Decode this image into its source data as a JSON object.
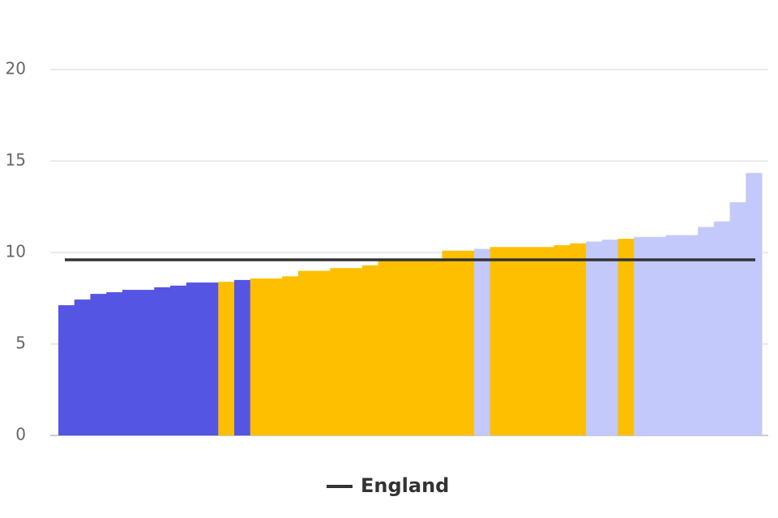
{
  "chart_data": {
    "type": "bar",
    "values": [
      7.12,
      7.43,
      7.74,
      7.83,
      7.96,
      7.96,
      8.1,
      8.19,
      8.36,
      8.36,
      8.4,
      8.5,
      8.58,
      8.58,
      8.7,
      9.0,
      9.0,
      9.15,
      9.15,
      9.3,
      9.55,
      9.55,
      9.55,
      9.55,
      10.1,
      10.1,
      10.2,
      10.3,
      10.3,
      10.3,
      10.3,
      10.4,
      10.5,
      10.6,
      10.7,
      10.75,
      10.85,
      10.85,
      10.95,
      10.95,
      11.4,
      11.7,
      12.75,
      14.35
    ],
    "colors": [
      "#5555e3",
      "#5555e3",
      "#5555e3",
      "#5555e3",
      "#5555e3",
      "#5555e3",
      "#5555e3",
      "#5555e3",
      "#5555e3",
      "#5555e3",
      "#fdbf00",
      "#5555e3",
      "#fdbf00",
      "#fdbf00",
      "#fdbf00",
      "#fdbf00",
      "#fdbf00",
      "#fdbf00",
      "#fdbf00",
      "#fdbf00",
      "#fdbf00",
      "#fdbf00",
      "#fdbf00",
      "#fdbf00",
      "#fdbf00",
      "#fdbf00",
      "#c3c9fb",
      "#fdbf00",
      "#fdbf00",
      "#fdbf00",
      "#fdbf00",
      "#fdbf00",
      "#fdbf00",
      "#c3c9fb",
      "#c3c9fb",
      "#fdbf00",
      "#c3c9fb",
      "#c3c9fb",
      "#c3c9fb",
      "#c3c9fb",
      "#c3c9fb",
      "#c3c9fb",
      "#c3c9fb",
      "#c3c9fb"
    ],
    "reference_line": {
      "name": "England",
      "value": 9.6,
      "color": "#333333"
    },
    "ylim": [
      0,
      20
    ],
    "yticks": [
      0,
      5,
      10,
      15,
      20
    ],
    "grid": true
  }
}
